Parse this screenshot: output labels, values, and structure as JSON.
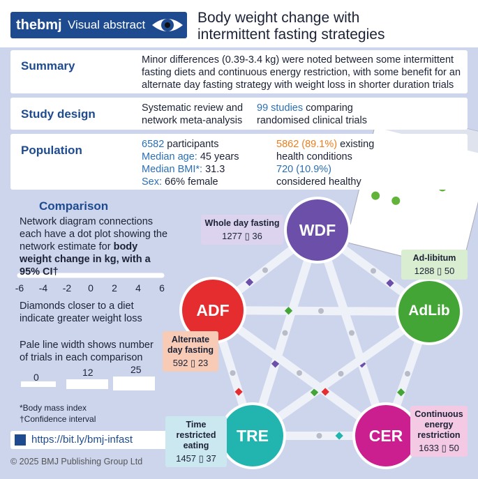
{
  "header": {
    "brand": "thebmj",
    "label": "Visual abstract",
    "title": "Body weight change with intermittent fasting strategies"
  },
  "summary": {
    "heading": "Summary",
    "text": "Minor differences (0.39-3.4 kg) were noted between some intermittent fasting diets and continuous energy restriction, with some benefit for an alternate day fasting strategy with weight loss in shorter duration trials"
  },
  "study_design": {
    "heading": "Study design",
    "left": "Systematic review and network meta-analysis",
    "right_highlight": "99 studies",
    "right": "comparing randomised clinical trials"
  },
  "population": {
    "heading": "Population",
    "participants": "6582",
    "participants_label": "participants",
    "age_label": "Median age:",
    "age": "45 years",
    "bmi_label": "Median BMI*:",
    "bmi": "31.3",
    "sex_label": "Sex:",
    "sex": "66% female",
    "conditions_value": "5862 (89.1%)",
    "conditions_label": "existing health conditions",
    "healthy_value": "720 (10.9%)",
    "healthy_label": "considered healthy"
  },
  "comparison": {
    "heading": "Comparison",
    "text": "Network diagram connections each have a dot plot showing the network estimate for",
    "text_bold": "body weight change in kg, with a 95% CI†",
    "axis_ticks": [
      -6,
      -4,
      -2,
      0,
      2,
      4,
      6
    ],
    "diamond_note": "Diamonds closer to a diet indicate greater weight loss",
    "width_note": "Pale line width shows number of trials in each comparison",
    "width_legend": [
      0,
      12,
      25
    ]
  },
  "footnotes": [
    "*Body mass index",
    "†Confidence interval"
  ],
  "link": "https://bit.ly/bmj-infast",
  "copyright": "© 2025 BMJ Publishing Group Ltd",
  "nodes": [
    {
      "abbr": "WDF",
      "label": "Whole day fasting",
      "participants": 1277,
      "trials": 36
    },
    {
      "abbr": "AdLib",
      "label": "Ad-libitum",
      "participants": 1288,
      "trials": 50
    },
    {
      "abbr": "ADF",
      "label": "Alternate day fasting",
      "participants": 592,
      "trials": 23
    },
    {
      "abbr": "TRE",
      "label": "Time restricted eating",
      "participants": 1457,
      "trials": 37
    },
    {
      "abbr": "CER",
      "label": "Continuous energy restriction",
      "participants": 1633,
      "trials": 50
    }
  ]
}
